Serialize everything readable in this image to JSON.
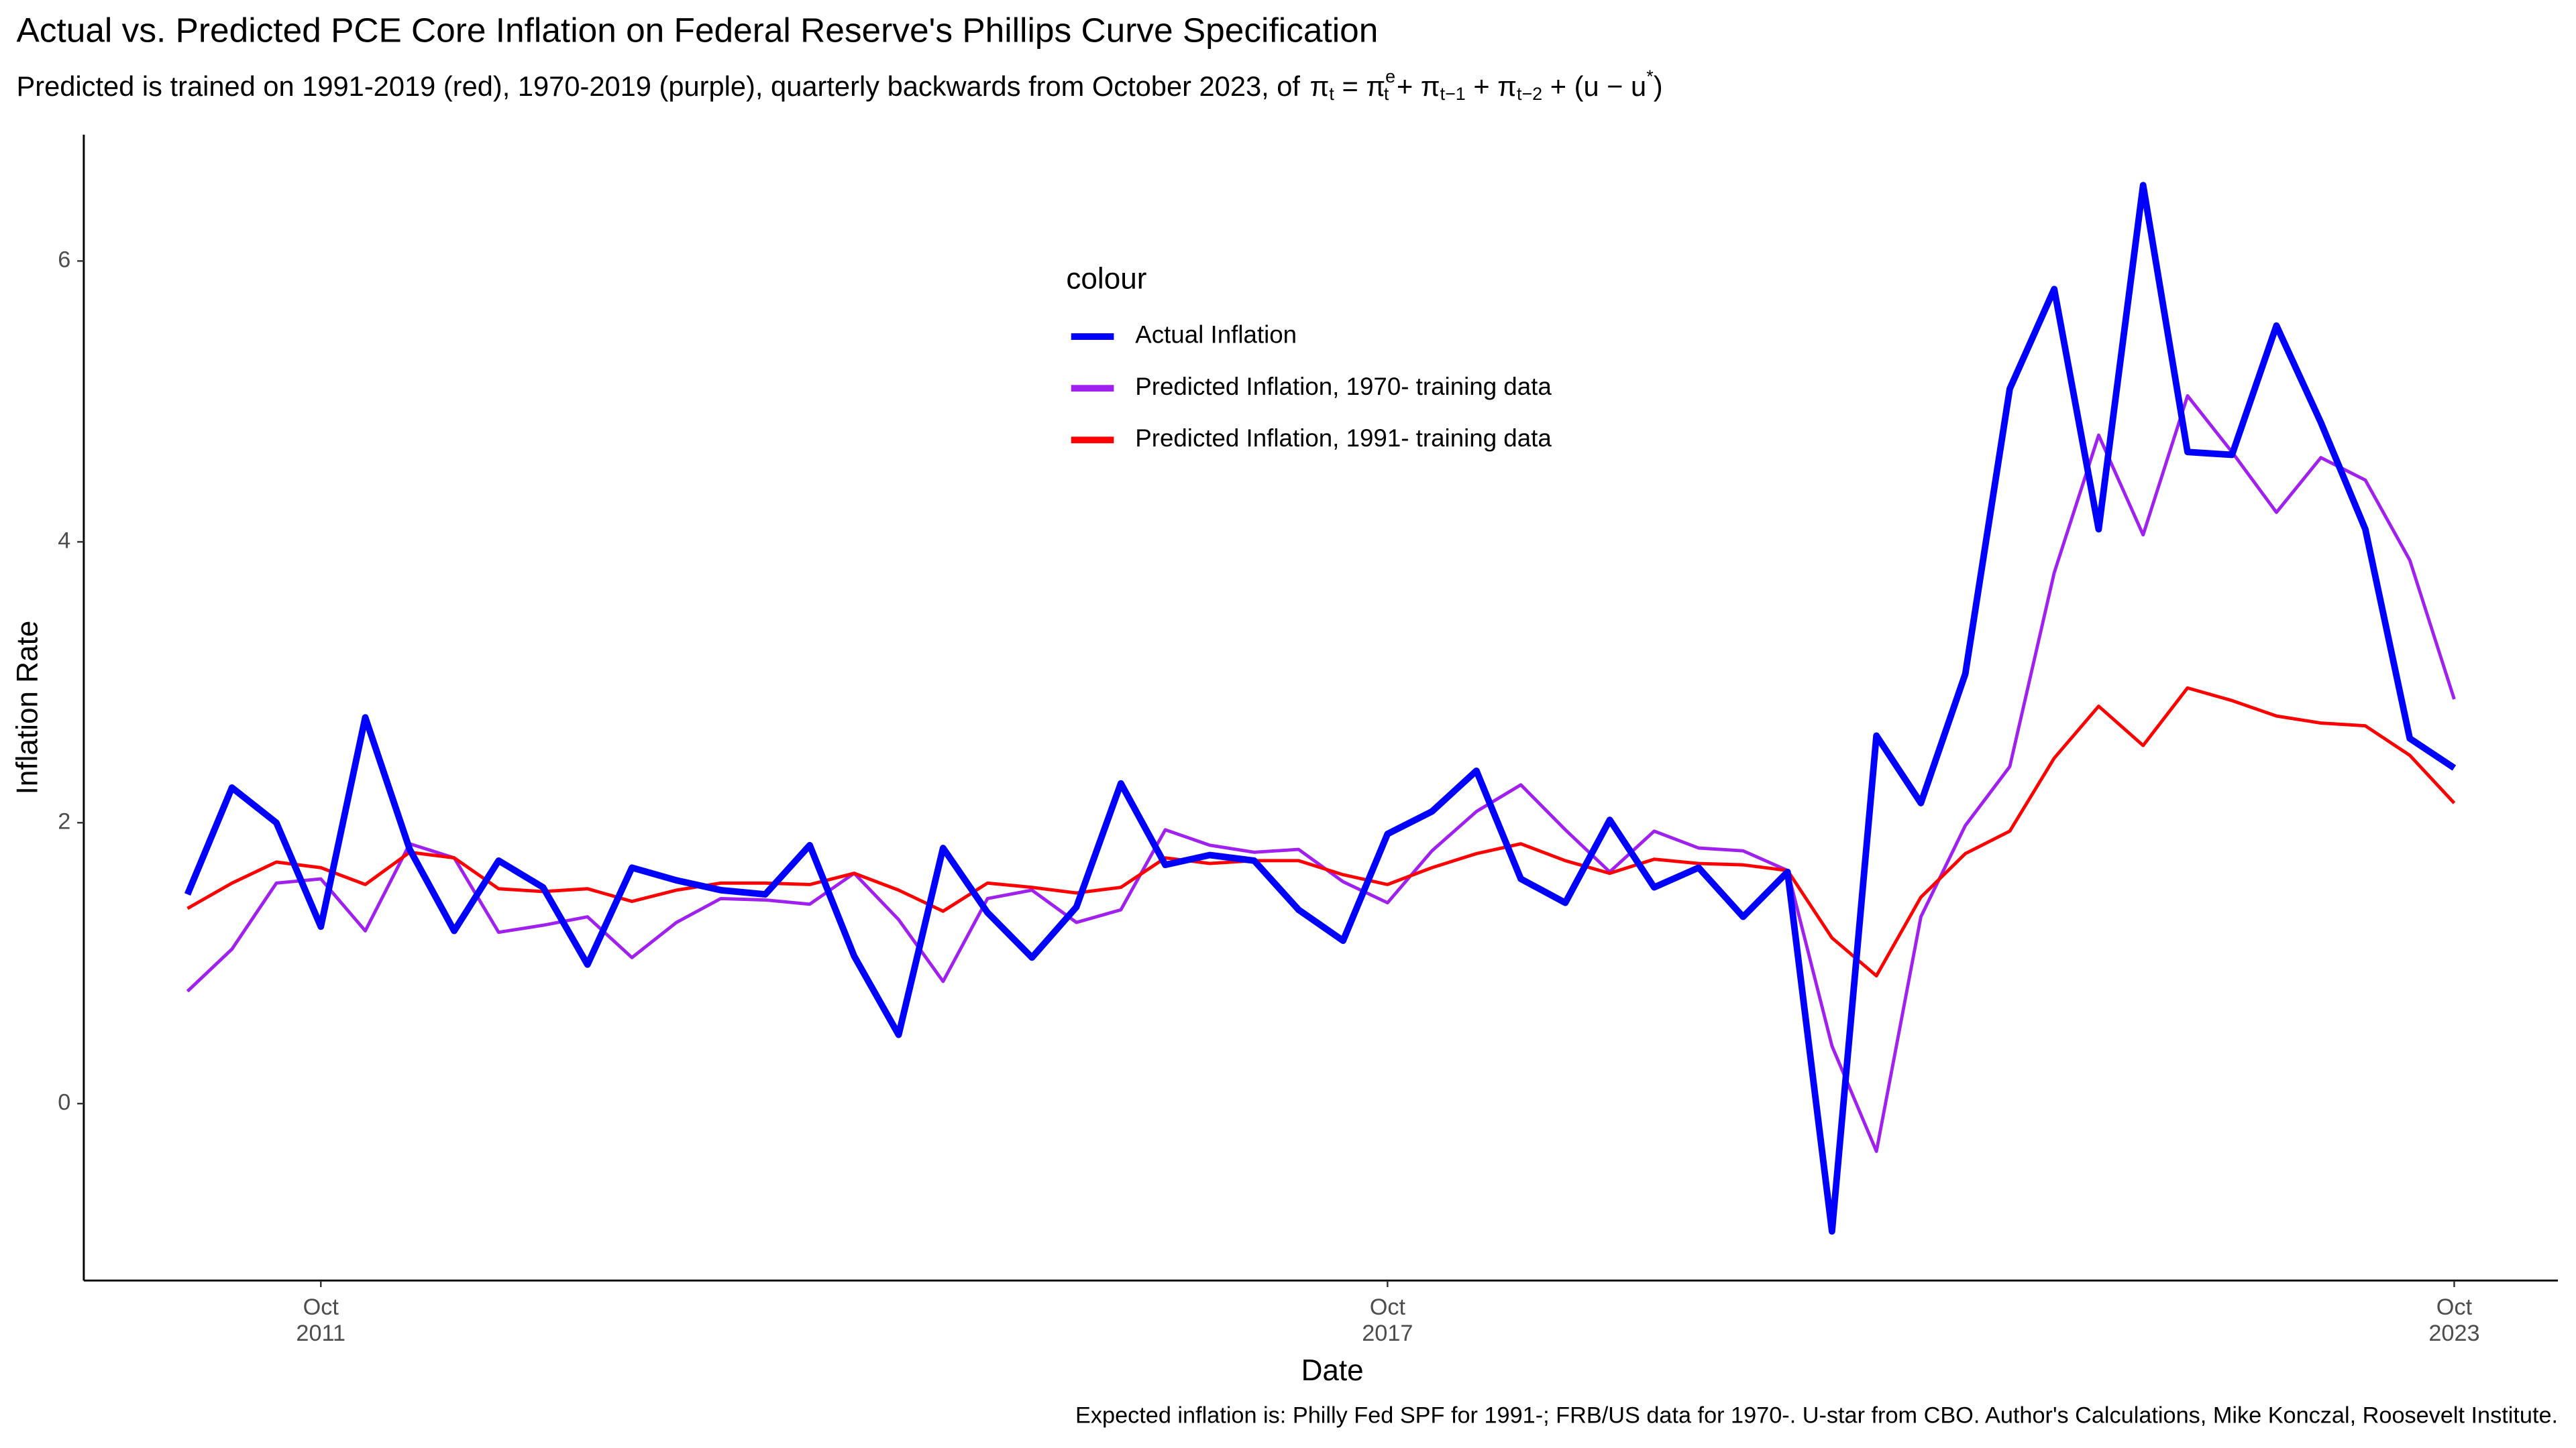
{
  "chart_data": {
    "type": "line",
    "title": "Actual vs. Predicted PCE Core Inflation on Federal Reserve's Phillips Curve Specification",
    "subtitle": "Predicted is trained on 1991-2019 (red), 1970-2019 (purple), quarterly backwards from October 2023, of",
    "formula": [
      {
        "text": "π",
        "sub": "t"
      },
      {
        "text": " = "
      },
      {
        "text": "π",
        "sub": "t",
        "sup": "e"
      },
      {
        "text": " + "
      },
      {
        "text": "π",
        "sub": "t−1"
      },
      {
        "text": " + "
      },
      {
        "text": "π",
        "sub": "t−2"
      },
      {
        "text": " + "
      },
      {
        "text": "(u − u",
        "sup": "*"
      },
      {
        "text": ")"
      }
    ],
    "x_label": "Date",
    "y_label": "Inflation Rate",
    "caption": "Expected inflation is: Philly Fed SPF for 1991-; FRB/US data for 1970-. U-star from CBO. Author's Calculations, Mike Konczal, Roosevelt Institute.",
    "legend_title": "colour",
    "x": [
      "2011-01",
      "2011-04",
      "2011-07",
      "2011-10",
      "2012-01",
      "2012-04",
      "2012-07",
      "2012-10",
      "2013-01",
      "2013-04",
      "2013-07",
      "2013-10",
      "2014-01",
      "2014-04",
      "2014-07",
      "2014-10",
      "2015-01",
      "2015-04",
      "2015-07",
      "2015-10",
      "2016-01",
      "2016-04",
      "2016-07",
      "2016-10",
      "2017-01",
      "2017-04",
      "2017-07",
      "2017-10",
      "2018-01",
      "2018-04",
      "2018-07",
      "2018-10",
      "2019-01",
      "2019-04",
      "2019-07",
      "2019-10",
      "2020-01",
      "2020-04",
      "2020-07",
      "2020-10",
      "2021-01",
      "2021-04",
      "2021-07",
      "2021-10",
      "2022-01",
      "2022-04",
      "2022-07",
      "2022-10",
      "2023-01",
      "2023-04",
      "2023-07",
      "2023-10"
    ],
    "series": [
      {
        "name": "Actual Inflation",
        "color": "#0000ff",
        "width": 4,
        "values": [
          1.49,
          2.25,
          2.0,
          1.26,
          2.75,
          1.81,
          1.23,
          1.73,
          1.54,
          0.99,
          1.68,
          1.59,
          1.52,
          1.49,
          1.84,
          1.05,
          0.49,
          1.82,
          1.36,
          1.04,
          1.4,
          2.28,
          1.7,
          1.77,
          1.73,
          1.38,
          1.16,
          1.92,
          2.08,
          2.37,
          1.6,
          1.43,
          2.02,
          1.54,
          1.68,
          1.33,
          1.65,
          -0.91,
          2.62,
          2.14,
          3.06,
          5.09,
          5.8,
          4.09,
          6.54,
          4.64,
          4.62,
          5.54,
          4.85,
          4.09,
          2.6,
          2.39
        ]
      },
      {
        "name": "Predicted Inflation, 1970- training data",
        "color": "#a020f0",
        "width": 2,
        "values": [
          0.8,
          1.1,
          1.57,
          1.6,
          1.23,
          1.85,
          1.75,
          1.22,
          1.27,
          1.33,
          1.04,
          1.29,
          1.46,
          1.45,
          1.42,
          1.64,
          1.31,
          0.87,
          1.46,
          1.52,
          1.29,
          1.38,
          1.95,
          1.84,
          1.79,
          1.81,
          1.58,
          1.43,
          1.8,
          2.08,
          2.27,
          1.95,
          1.65,
          1.94,
          1.82,
          1.8,
          1.66,
          0.41,
          -0.34,
          1.33,
          1.98,
          2.4,
          3.78,
          4.76,
          4.05,
          5.04,
          4.64,
          4.21,
          4.6,
          4.44,
          3.87,
          2.88
        ]
      },
      {
        "name": "Predicted Inflation, 1991- training data",
        "color": "#ff0000",
        "width": 2,
        "values": [
          1.39,
          1.57,
          1.72,
          1.68,
          1.56,
          1.79,
          1.75,
          1.53,
          1.51,
          1.53,
          1.44,
          1.52,
          1.57,
          1.57,
          1.56,
          1.64,
          1.52,
          1.37,
          1.57,
          1.54,
          1.5,
          1.54,
          1.75,
          1.71,
          1.73,
          1.73,
          1.63,
          1.56,
          1.68,
          1.78,
          1.85,
          1.73,
          1.64,
          1.74,
          1.71,
          1.7,
          1.66,
          1.18,
          0.91,
          1.47,
          1.78,
          1.94,
          2.46,
          2.83,
          2.55,
          2.96,
          2.87,
          2.76,
          2.71,
          2.69,
          2.48,
          2.14
        ]
      }
    ],
    "xlim": [
      "2010-06",
      "2024-05"
    ],
    "xticks": [
      {
        "value": "2011-10",
        "label": [
          "Oct",
          "2011"
        ]
      },
      {
        "value": "2017-10",
        "label": [
          "Oct",
          "2017"
        ]
      },
      {
        "value": "2023-10",
        "label": [
          "Oct",
          "2023"
        ]
      }
    ],
    "ylim": [
      -1.26,
      6.9
    ],
    "yticks": [
      0,
      2,
      4,
      6
    ],
    "grid": false,
    "legend": "top-center"
  }
}
